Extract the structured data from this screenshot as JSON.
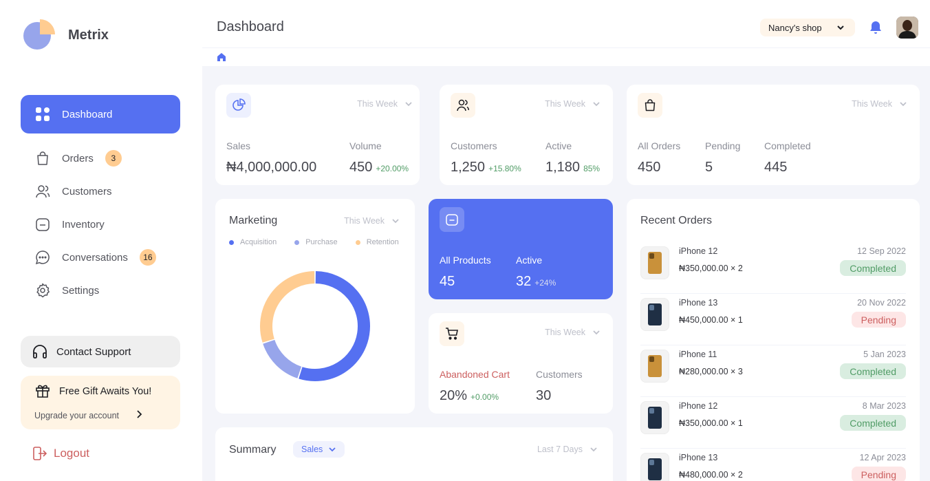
{
  "app": {
    "name": "Metrix"
  },
  "sidebar": {
    "items": [
      {
        "label": "Dashboard",
        "icon": "category-icon",
        "active": true
      },
      {
        "label": "Orders",
        "icon": "bag-icon",
        "badge": "3"
      },
      {
        "label": "Customers",
        "icon": "users-icon"
      },
      {
        "label": "Inventory",
        "icon": "folder-icon"
      },
      {
        "label": "Conversations",
        "icon": "chat-icon",
        "badge": "16"
      },
      {
        "label": "Settings",
        "icon": "gear-icon"
      }
    ],
    "support_label": "Contact Support",
    "gift_title": "Free Gift Awaits You!",
    "gift_sub": "Upgrade your account",
    "logout_label": "Logout"
  },
  "header": {
    "title": "Dashboard",
    "shop": "Nancy's shop"
  },
  "cards": {
    "sales": {
      "period": "This Week",
      "sales_label": "Sales",
      "sales_value": "₦4,000,000.00",
      "volume_label": "Volume",
      "volume_value": "450",
      "volume_delta": "+20.00%"
    },
    "customers": {
      "period": "This Week",
      "customers_label": "Customers",
      "customers_value": "1,250",
      "customers_delta": "+15.80%",
      "active_label": "Active",
      "active_value": "1,180",
      "active_delta": "85%"
    },
    "orders": {
      "period": "This Week",
      "all_label": "All Orders",
      "all_value": "450",
      "pending_label": "Pending",
      "pending_value": "5",
      "completed_label": "Completed",
      "completed_value": "445"
    },
    "marketing": {
      "title": "Marketing",
      "period": "This Week",
      "legend": [
        "Acquisition",
        "Purchase",
        "Retention"
      ]
    },
    "products": {
      "all_label": "All Products",
      "all_value": "45",
      "active_label": "Active",
      "active_value": "32",
      "active_delta": "+24%"
    },
    "cart": {
      "period": "This Week",
      "abandoned_label": "Abandoned Cart",
      "abandoned_value": "20%",
      "abandoned_delta": "+0.00%",
      "customers_label": "Customers",
      "customers_value": "30"
    },
    "summary": {
      "title": "Summary",
      "select": "Sales",
      "period": "Last 7 Days"
    }
  },
  "recent_orders": {
    "title": "Recent Orders",
    "items": [
      {
        "name": "iPhone 12",
        "price": "₦350,000.00 × 2",
        "date": "12 Sep 2022",
        "status": "Completed"
      },
      {
        "name": "iPhone 13",
        "price": "₦450,000.00 × 1",
        "date": "20 Nov 2022",
        "status": "Pending"
      },
      {
        "name": "iPhone 11",
        "price": "₦280,000.00 × 3",
        "date": "5 Jan 2023",
        "status": "Completed"
      },
      {
        "name": "iPhone 12",
        "price": "₦350,000.00 × 1",
        "date": "8 Mar 2023",
        "status": "Completed"
      },
      {
        "name": "iPhone 13",
        "price": "₦480,000.00 × 2",
        "date": "12 Apr 2023",
        "status": "Pending"
      }
    ]
  },
  "chart_data": {
    "type": "pie",
    "categories": [
      "Acquisition",
      "Purchase",
      "Retention"
    ],
    "values": [
      55,
      15,
      30
    ],
    "colors": [
      "#5570f1",
      "#97a5eb",
      "#ffcc91"
    ]
  },
  "colors": {
    "accent": "#5570f1",
    "success": "#519c66",
    "danger": "#cc5f5f",
    "warning": "#ffcc91"
  }
}
